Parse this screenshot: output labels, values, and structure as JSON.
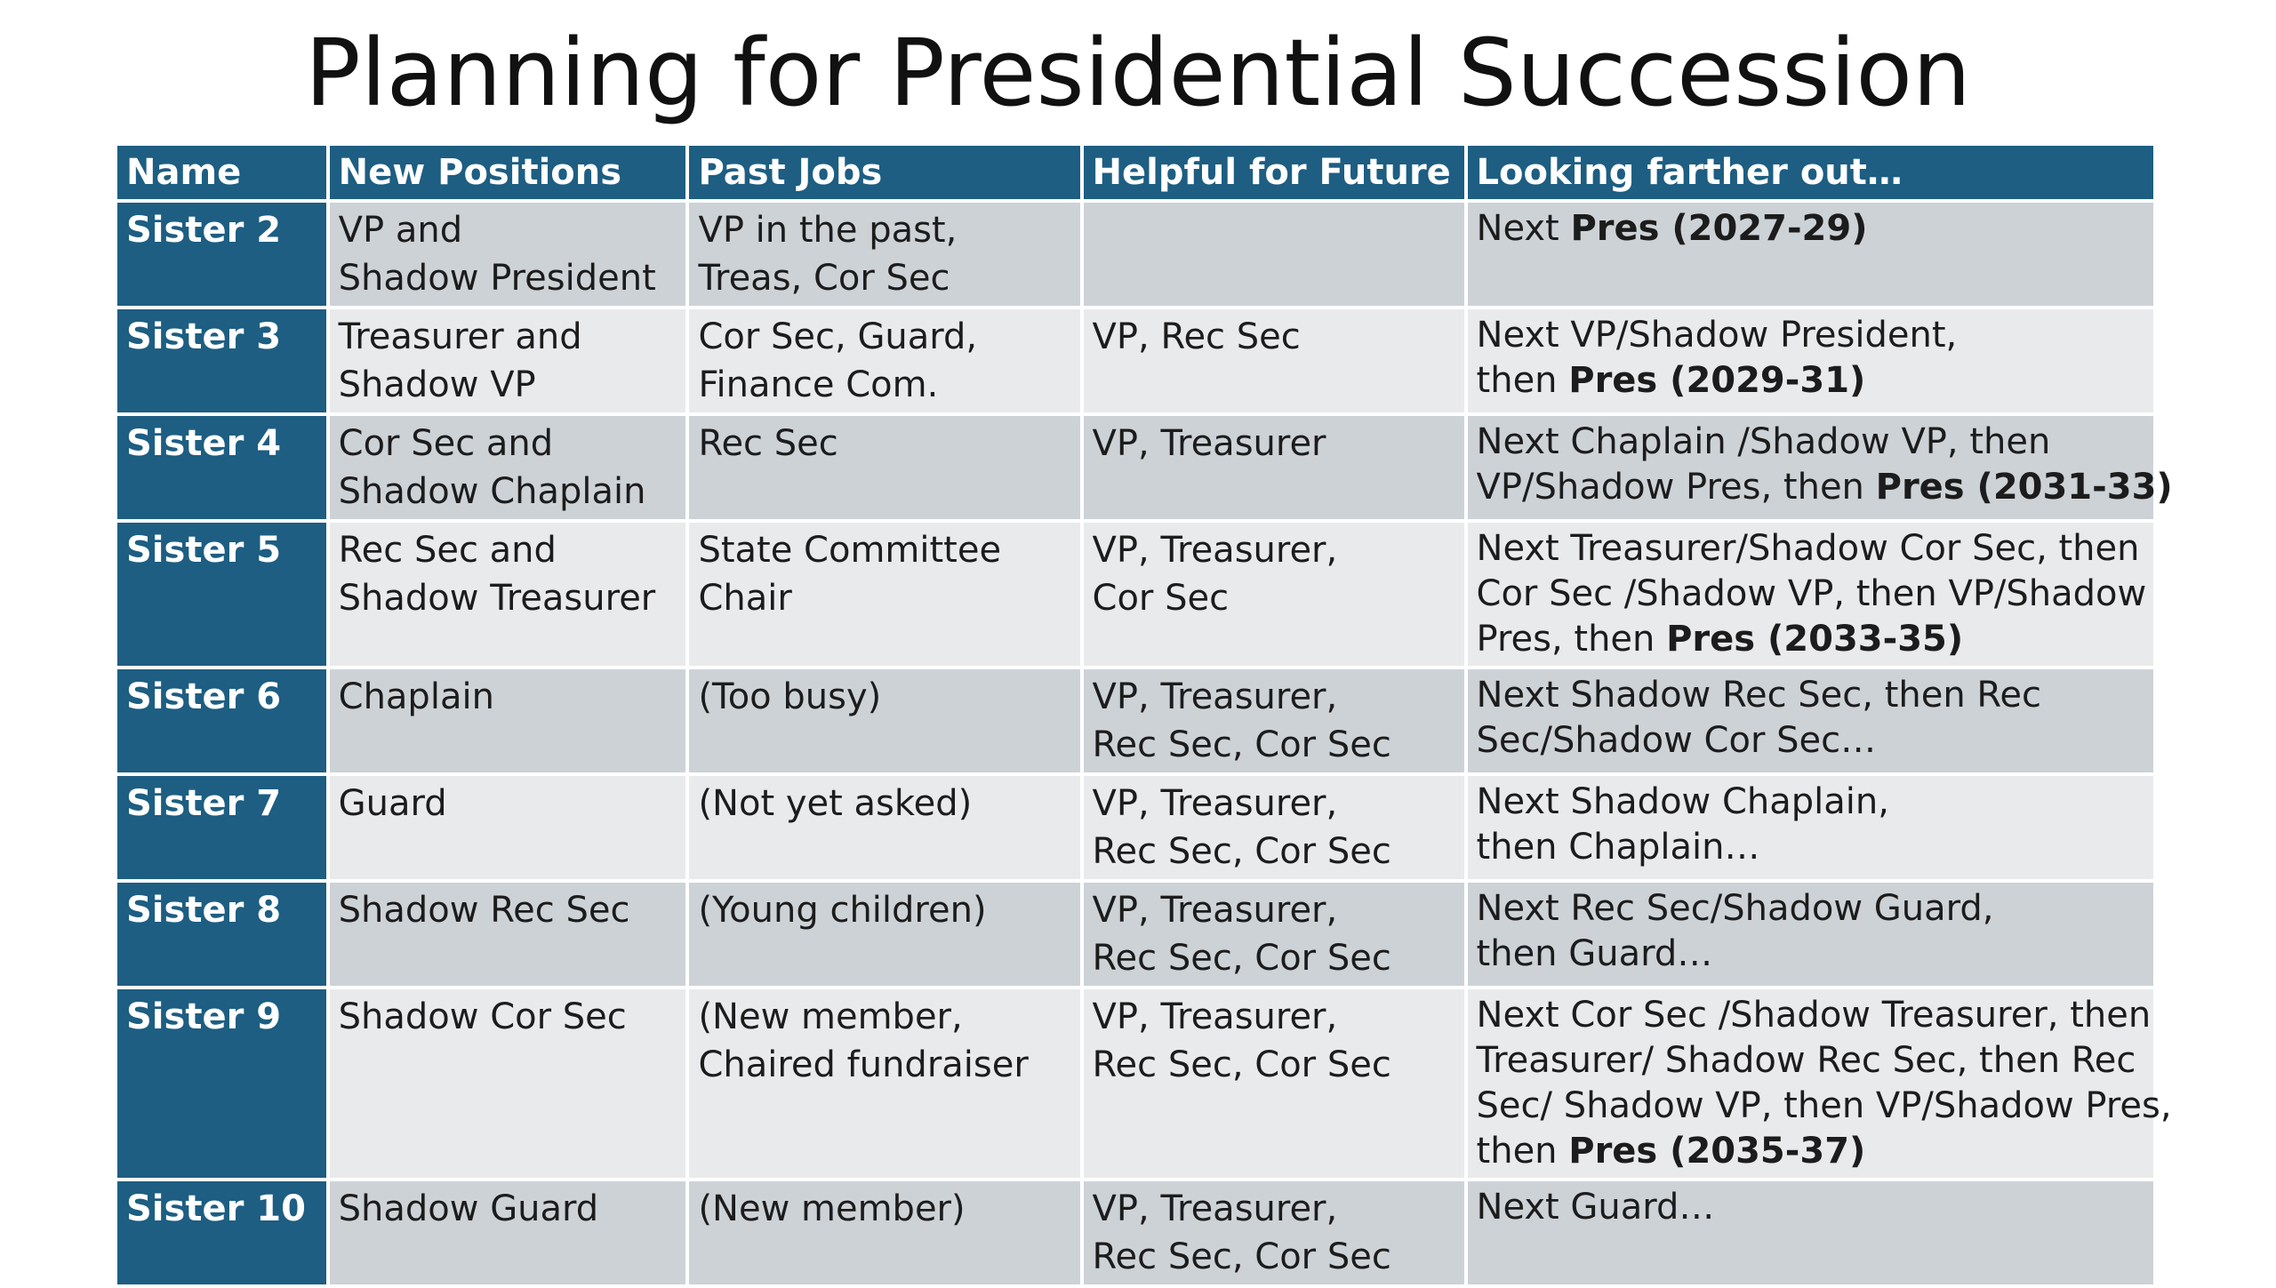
{
  "title": "Planning for Presidential Succession",
  "headers": {
    "name": "Name",
    "new_positions": "New Positions",
    "past_jobs": "Past Jobs",
    "helpful": "Helpful for Future",
    "farther": "Looking farther out…"
  },
  "rows": [
    {
      "name": "Sister 2",
      "new_positions": [
        "VP and",
        "Shadow President"
      ],
      "past_jobs": [
        "VP in the past,",
        "Treas, Cor Sec"
      ],
      "helpful": [],
      "farther": [
        {
          "text": "Next ",
          "bold": "Pres (2027-29)"
        }
      ]
    },
    {
      "name": "Sister 3",
      "new_positions": [
        "Treasurer and",
        "Shadow VP"
      ],
      "past_jobs": [
        "Cor Sec, Guard,",
        "Finance Com."
      ],
      "helpful": [
        "VP, Rec Sec"
      ],
      "farther": [
        {
          "text": "Next  VP/Shadow President,",
          "bold": ""
        },
        {
          "text": "then ",
          "bold": "Pres (2029-31)"
        }
      ]
    },
    {
      "name": "Sister 4",
      "new_positions": [
        "Cor Sec and",
        "Shadow Chaplain"
      ],
      "past_jobs": [
        "Rec Sec"
      ],
      "helpful": [
        "VP, Treasurer"
      ],
      "farther": [
        {
          "text": " Next Chaplain /Shadow VP, then",
          "bold": ""
        },
        {
          "text": "VP/Shadow Pres, then ",
          "bold": "Pres (2031-33)"
        }
      ]
    },
    {
      "name": "Sister 5",
      "new_positions": [
        " Rec Sec and",
        "Shadow Treasurer"
      ],
      "past_jobs": [
        "State Committee",
        "Chair"
      ],
      "helpful": [
        "VP, Treasurer,",
        "Cor Sec"
      ],
      "farther": [
        {
          "text": "Next Treasurer/Shadow Cor Sec, then",
          "bold": ""
        },
        {
          "text": "Cor Sec /Shadow VP, then VP/Shadow",
          "bold": ""
        },
        {
          "text": "Pres, then ",
          "bold": "Pres (2033-35)"
        }
      ]
    },
    {
      "name": "Sister 6",
      "new_positions": [
        " Chaplain"
      ],
      "past_jobs": [
        "(Too busy)"
      ],
      "helpful": [
        "VP, Treasurer,",
        "Rec Sec, Cor Sec"
      ],
      "farther": [
        {
          "text": "Next Shadow Rec Sec, then Rec",
          "bold": ""
        },
        {
          "text": "Sec/Shadow Cor Sec…",
          "bold": ""
        }
      ]
    },
    {
      "name": "Sister 7",
      "new_positions": [
        " Guard"
      ],
      "past_jobs": [
        "(Not yet asked)"
      ],
      "helpful": [
        " VP, Treasurer,",
        "Rec Sec, Cor Sec"
      ],
      "farther": [
        {
          "text": "Next Shadow Chaplain,",
          "bold": ""
        },
        {
          "text": "then Chaplain…",
          "bold": ""
        }
      ]
    },
    {
      "name": "Sister 8",
      "new_positions": [
        " Shadow Rec Sec"
      ],
      "past_jobs": [
        "(Young children)"
      ],
      "helpful": [
        " VP, Treasurer,",
        "Rec Sec, Cor Sec"
      ],
      "farther": [
        {
          "text": "Next Rec Sec/Shadow Guard,",
          "bold": ""
        },
        {
          "text": "then Guard…",
          "bold": ""
        }
      ]
    },
    {
      "name": "Sister 9",
      "new_positions": [
        " Shadow Cor Sec"
      ],
      "past_jobs": [
        "(New member,",
        "Chaired fundraiser"
      ],
      "helpful": [
        "VP, Treasurer,",
        "Rec Sec, Cor Sec"
      ],
      "farther": [
        {
          "text": "Next Cor Sec /Shadow Treasurer, then",
          "bold": ""
        },
        {
          "text": "Treasurer/ Shadow Rec Sec, then Rec",
          "bold": ""
        },
        {
          "text": "Sec/ Shadow VP, then  VP/Shadow Pres,",
          "bold": ""
        },
        {
          "text": "then ",
          "bold": "Pres (2035-37)"
        }
      ]
    },
    {
      "name": "Sister 10",
      "new_positions": [
        " Shadow Guard"
      ],
      "past_jobs": [
        "(New member)"
      ],
      "helpful": [
        "VP, Treasurer,",
        "Rec Sec, Cor Sec"
      ],
      "farther": [
        {
          "text": " Next Guard…",
          "bold": ""
        }
      ]
    }
  ]
}
